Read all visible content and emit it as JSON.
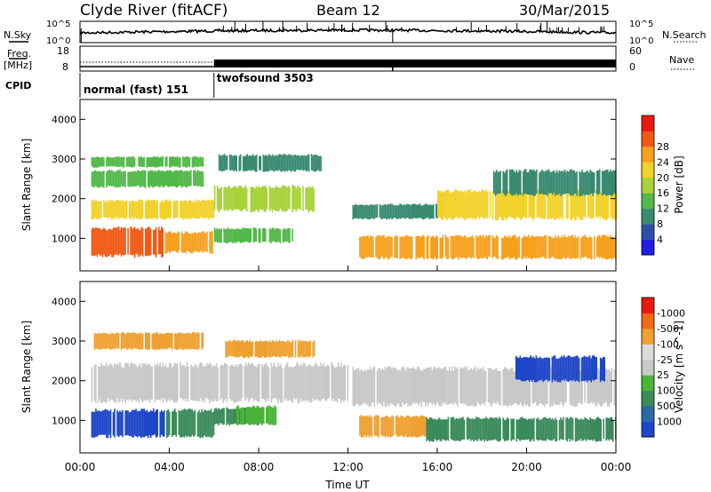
{
  "header": {
    "title": "Clyde River (fitACF)",
    "beam": "Beam 12",
    "date": "30/Mar/2015"
  },
  "noise_panel": {
    "left_label": "N.Sky",
    "right_label": "N.Search",
    "left_ticks": [
      "10^5",
      "10^0"
    ],
    "right_ticks": [
      "10^5",
      "10^0"
    ]
  },
  "freq_panel": {
    "left_label_top": "Freq.",
    "left_label_unit": "[MHz]",
    "left_ticks": [
      "18",
      "8"
    ],
    "right_label": "Nave",
    "right_ticks": [
      "60",
      "0"
    ]
  },
  "cpid": {
    "label": "CPID",
    "modes": [
      {
        "name": "normal (fast) 151",
        "start_hour": 0
      },
      {
        "name": "twofsound 3503",
        "start_hour": 6
      }
    ]
  },
  "x_axis": {
    "label": "Time UT",
    "ticks": [
      "00:00",
      "04:00",
      "08:00",
      "12:00",
      "16:00",
      "20:00",
      "00:00"
    ],
    "range_hours": [
      0,
      24
    ]
  },
  "chart_data": [
    {
      "type": "heatmap",
      "panel": "power",
      "ylabel": "Slant Range [km]",
      "ylim": [
        180,
        4500
      ],
      "yticks": [
        1000,
        2000,
        3000,
        4000
      ],
      "colorbar": {
        "label": "Power [dB]",
        "ticks": [
          "4",
          "8",
          "12",
          "16",
          "20",
          "24",
          "28"
        ],
        "colors": [
          "#1e1ee6",
          "#2b4fa8",
          "#3a8a72",
          "#52b84a",
          "#a8d23a",
          "#f2d22a",
          "#f6a11e",
          "#f05a14",
          "#e81a10"
        ]
      },
      "echo_bands": [
        {
          "t0": 0.5,
          "t1": 3.8,
          "r0": 560,
          "r1": 1250,
          "level": 28
        },
        {
          "t0": 3.8,
          "t1": 5.9,
          "r0": 650,
          "r1": 1150,
          "level": 24
        },
        {
          "t0": 6.0,
          "t1": 9.5,
          "r0": 900,
          "r1": 1250,
          "level": 12
        },
        {
          "t0": 0.5,
          "t1": 6.0,
          "r0": 1500,
          "r1": 1950,
          "level": 20
        },
        {
          "t0": 6.0,
          "t1": 10.5,
          "r0": 1700,
          "r1": 2300,
          "level": 16
        },
        {
          "t0": 0.5,
          "t1": 5.5,
          "r0": 2300,
          "r1": 2700,
          "level": 12
        },
        {
          "t0": 0.5,
          "t1": 5.5,
          "r0": 2800,
          "r1": 3050,
          "level": 12
        },
        {
          "t0": 6.2,
          "t1": 10.8,
          "r0": 2700,
          "r1": 3100,
          "level": 8
        },
        {
          "t0": 12.2,
          "t1": 16.0,
          "r0": 1500,
          "r1": 1850,
          "level": 8
        },
        {
          "t0": 12.5,
          "t1": 24.0,
          "r0": 500,
          "r1": 1050,
          "level": 24
        },
        {
          "t0": 16.0,
          "t1": 24.0,
          "r0": 1500,
          "r1": 2200,
          "level": 20
        },
        {
          "t0": 18.5,
          "t1": 24.0,
          "r0": 2100,
          "r1": 2700,
          "level": 8
        }
      ]
    },
    {
      "type": "heatmap",
      "panel": "velocity",
      "ylabel": "Slant Range [km]",
      "ylim": [
        180,
        4500
      ],
      "yticks": [
        1000,
        2000,
        3000,
        4000
      ],
      "colorbar": {
        "label": "Velocity [m s^-1]",
        "ticks": [
          "1000",
          "500",
          "100",
          "25",
          "-25",
          "-100",
          "-500",
          "-1000"
        ],
        "colors": [
          "#1e46c8",
          "#2a6aa8",
          "#3a8a5a",
          "#4ab43a",
          "#c8c8c8",
          "#dcdcdc",
          "#f0a030",
          "#f06a18",
          "#e81a10"
        ]
      },
      "echo_bands": [
        {
          "t0": 0.5,
          "t1": 3.8,
          "r0": 600,
          "r1": 1250,
          "level": 1000
        },
        {
          "t0": 3.8,
          "t1": 6.0,
          "r0": 600,
          "r1": 1250,
          "level": 100
        },
        {
          "t0": 6.0,
          "t1": 8.0,
          "r0": 900,
          "r1": 1300,
          "level": 100
        },
        {
          "t0": 7.0,
          "t1": 8.8,
          "r0": 900,
          "r1": 1350,
          "level": 50
        },
        {
          "t0": 0.5,
          "t1": 12.0,
          "r0": 1500,
          "r1": 2400,
          "level": 0
        },
        {
          "t0": 0.5,
          "t1": 5.5,
          "r0": 2800,
          "r1": 3200,
          "level": -300
        },
        {
          "t0": 6.5,
          "t1": 10.5,
          "r0": 2600,
          "r1": 3000,
          "level": -300
        },
        {
          "t0": 12.2,
          "t1": 24.0,
          "r0": 1400,
          "r1": 2300,
          "level": 0
        },
        {
          "t0": 12.5,
          "t1": 15.5,
          "r0": 600,
          "r1": 1100,
          "level": -300
        },
        {
          "t0": 15.5,
          "t1": 24.0,
          "r0": 500,
          "r1": 1050,
          "level": 100
        },
        {
          "t0": 19.5,
          "t1": 23.5,
          "r0": 2000,
          "r1": 2600,
          "level": 1000
        }
      ]
    }
  ]
}
